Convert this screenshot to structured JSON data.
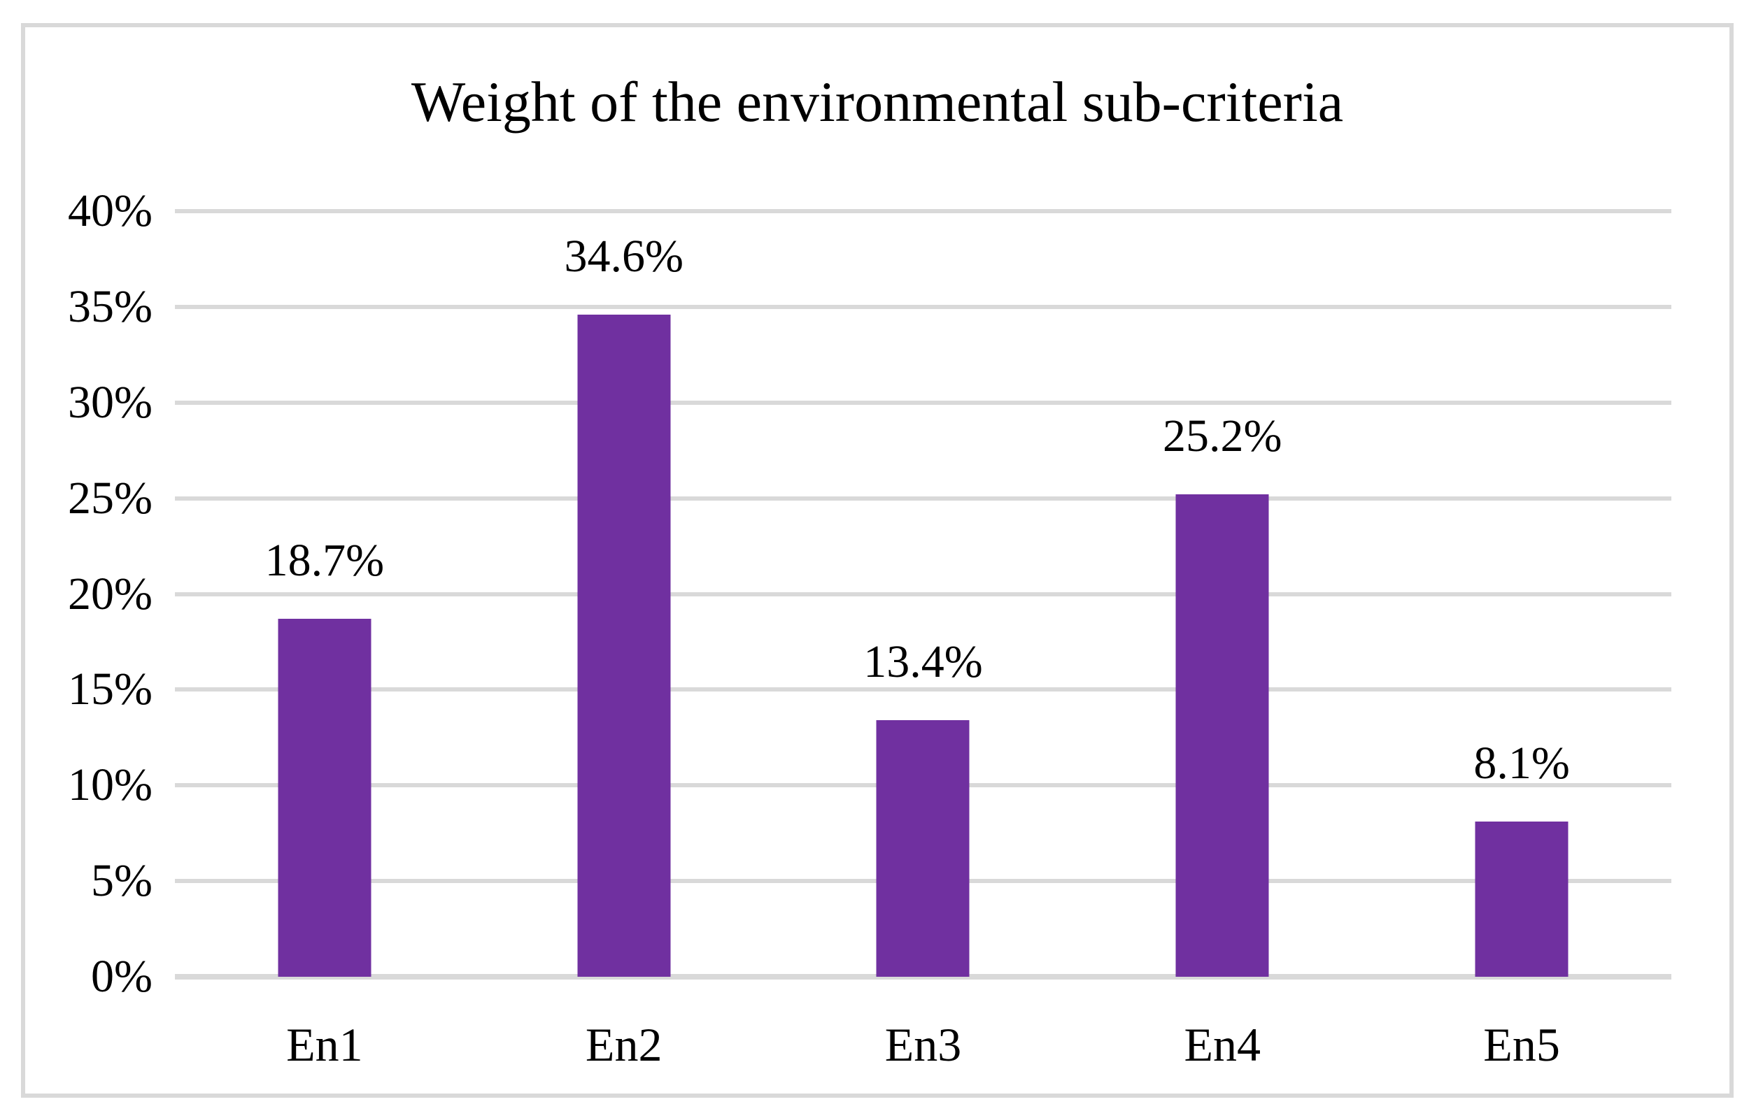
{
  "chart_data": {
    "type": "bar",
    "title": "Weight of the environmental sub-criteria",
    "categories": [
      "En1",
      "En2",
      "En3",
      "En4",
      "En5"
    ],
    "values": [
      18.7,
      34.6,
      13.4,
      25.2,
      8.1
    ],
    "data_labels": [
      "18.7%",
      "34.6%",
      "13.4%",
      "25.2%",
      "8.1%"
    ],
    "y_ticks": [
      "0%",
      "5%",
      "10%",
      "15%",
      "20%",
      "25%",
      "30%",
      "35%",
      "40%"
    ],
    "ylim": [
      0,
      40
    ],
    "y_step": 5,
    "xlabel": "",
    "ylabel": "",
    "grid": "horizontal-only",
    "legend": "none",
    "colors": {
      "bar": "#7030A0",
      "gridline": "#D9D9D9",
      "frame_border": "#D9D9D9",
      "background": "#FFFFFF",
      "text": "#000000"
    }
  }
}
